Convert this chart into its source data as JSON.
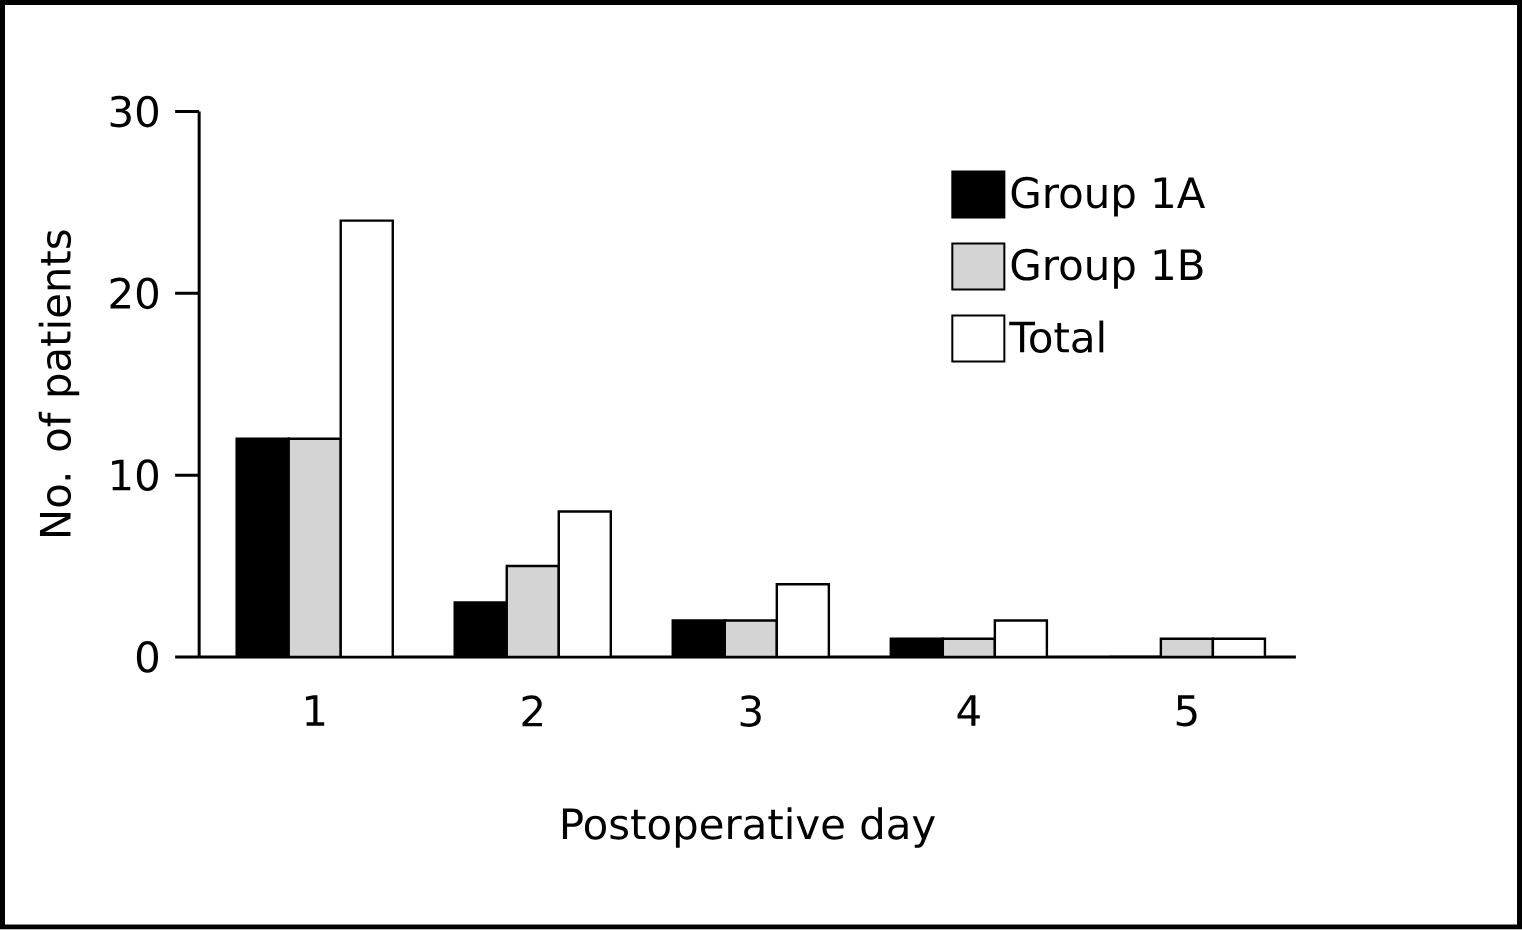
{
  "chart_data": {
    "type": "bar",
    "xlabel": "Postoperative day",
    "ylabel": "No. of patients",
    "categories": [
      "1",
      "2",
      "3",
      "4",
      "5"
    ],
    "series": [
      {
        "name": "Group 1A",
        "color": "#000000",
        "values": [
          12,
          3,
          2,
          1,
          0
        ]
      },
      {
        "name": "Group 1B",
        "color": "#d4d4d4",
        "values": [
          12,
          5,
          2,
          1,
          1
        ]
      },
      {
        "name": "Total",
        "color": "#ffffff",
        "values": [
          24,
          8,
          4,
          2,
          1
        ]
      }
    ],
    "ylim": [
      0,
      30
    ],
    "yticks": [
      0,
      10,
      20,
      30
    ],
    "legend": "top right"
  }
}
